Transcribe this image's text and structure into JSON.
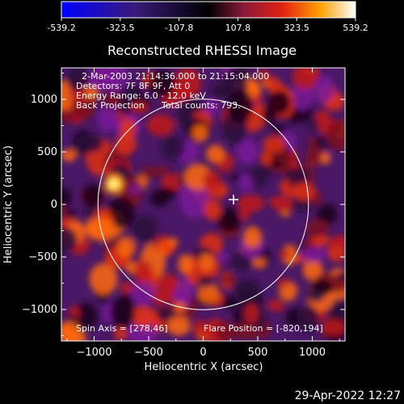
{
  "colorbar": {
    "tick_labels": [
      "-539.2",
      "-323.5",
      "-107.8",
      "107.8",
      "323.5",
      "539.2"
    ],
    "range": [
      -539.2,
      539.2
    ],
    "colormap": [
      "#0000ff",
      "#3a1a7a",
      "#000000",
      "#5a1a5a",
      "#c81e1e",
      "#ff7a00",
      "#ffd400",
      "#ffffff"
    ]
  },
  "chart_data": {
    "type": "heatmap",
    "title": "Reconstructed RHESSI Image",
    "xlabel": "Heliocentric X (arcsec)",
    "ylabel": "Heliocentric Y (arcsec)",
    "xlim": [
      -1300,
      1300
    ],
    "ylim": [
      -1300,
      1300
    ],
    "x_ticks": [
      -1000,
      -500,
      0,
      500,
      1000
    ],
    "y_ticks": [
      -1000,
      -500,
      0,
      500,
      1000
    ],
    "x_tick_labels": [
      "−1000",
      "−500",
      "0",
      "500",
      "1000"
    ],
    "y_tick_labels": [
      "−1000",
      "−500",
      "0",
      "500",
      "1000"
    ],
    "solar_limb": {
      "center": [
        0,
        0
      ],
      "radius_arcsec": 965
    },
    "marker": {
      "type": "cross",
      "x": 278,
      "y": 46
    },
    "hot_spot": {
      "x": -820,
      "y": 194
    },
    "annotations": {
      "line1": "2-Mar-2003 21:14:36.000 to 21:15:04.000",
      "line2": "Detectors: 7F 8F 9F, Att 0",
      "line3": "Energy Range: 6.0 - 12.0 keV",
      "line4a": "Back Projection",
      "line4b": "Total counts: 793.",
      "spin_axis": "Spin Axis = [278,46]",
      "flare_position": "Flare Position = [-820,194]"
    }
  },
  "footer_timestamp": "29-Apr-2022 12:27"
}
